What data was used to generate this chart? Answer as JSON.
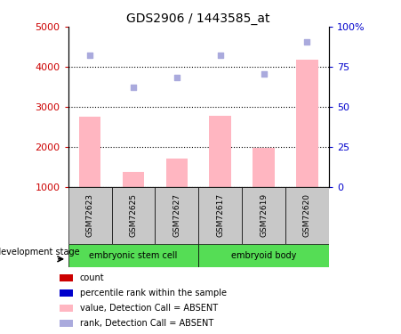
{
  "title": "GDS2906 / 1443585_at",
  "samples": [
    "GSM72623",
    "GSM72625",
    "GSM72627",
    "GSM72617",
    "GSM72619",
    "GSM72620"
  ],
  "bar_values": [
    2750,
    1380,
    1720,
    2780,
    1980,
    4180
  ],
  "rank_values": [
    4280,
    3500,
    3730,
    4280,
    3820,
    4620
  ],
  "ylim_left": [
    1000,
    5000
  ],
  "ylim_right": [
    0,
    100
  ],
  "yticks_left": [
    1000,
    2000,
    3000,
    4000,
    5000
  ],
  "yticks_right": [
    0,
    25,
    50,
    75,
    100
  ],
  "yticklabels_right": [
    "0",
    "25",
    "50",
    "75",
    "100%"
  ],
  "yticklabels_left": [
    "1000",
    "2000",
    "3000",
    "4000",
    "5000"
  ],
  "group1_label": "embryonic stem cell",
  "group2_label": "embryoid body",
  "bar_color": "#FFB6C1",
  "rank_color": "#AAAADD",
  "bar_width": 0.5,
  "legend_items": [
    {
      "label": "count",
      "color": "#CC0000"
    },
    {
      "label": "percentile rank within the sample",
      "color": "#0000CC"
    },
    {
      "label": "value, Detection Call = ABSENT",
      "color": "#FFB6C1"
    },
    {
      "label": "rank, Detection Call = ABSENT",
      "color": "#AAAADD"
    }
  ],
  "left_axis_color": "#CC0000",
  "right_axis_color": "#0000CC",
  "group_bg_color": "#C8C8C8",
  "group_green_color": "#55DD55",
  "dev_stage_label": "development stage",
  "title_fontsize": 10,
  "tick_fontsize": 8,
  "label_fontsize": 7,
  "legend_fontsize": 7
}
